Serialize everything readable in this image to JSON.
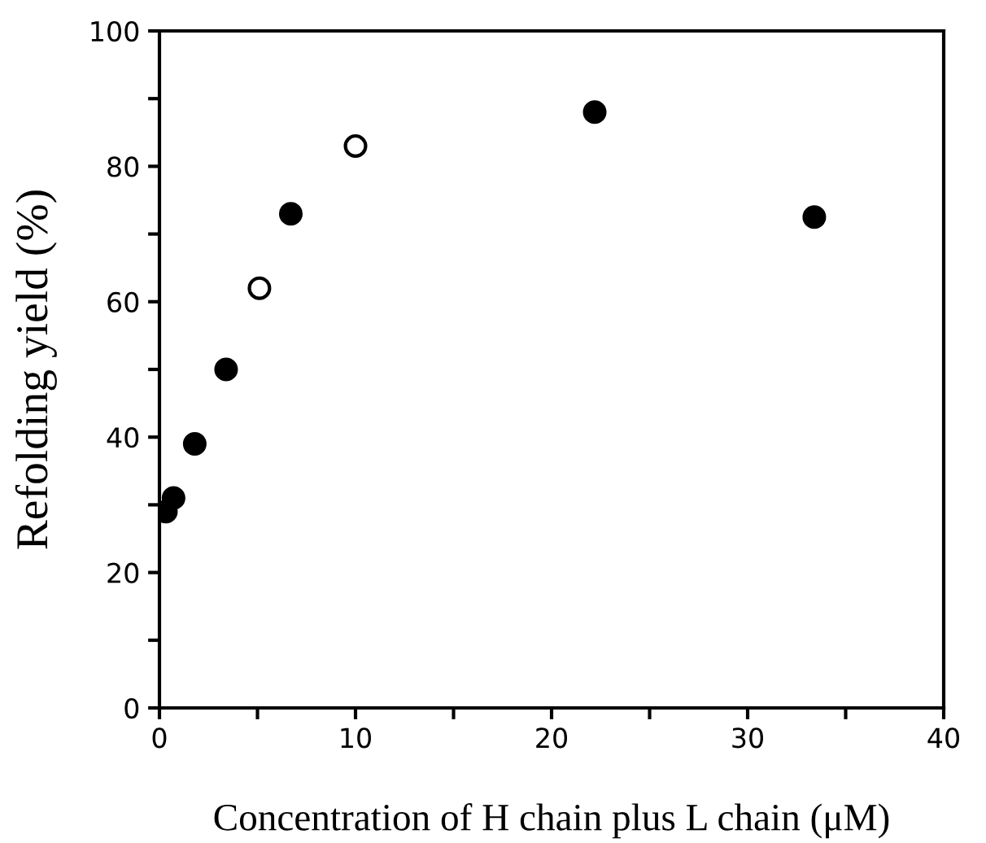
{
  "chart_data": {
    "type": "scatter",
    "xlabel": "Concentration of H chain plus L chain (μM)",
    "ylabel": "Refolding yield (%)",
    "xlim": [
      0,
      40
    ],
    "ylim": [
      0,
      100
    ],
    "xticks": [
      0,
      {
        "value": 5,
        "label": null
      },
      10,
      {
        "value": 15,
        "label": null
      },
      20,
      {
        "value": 25,
        "label": null
      },
      30,
      {
        "value": 35,
        "label": null
      },
      40
    ],
    "yticks": [
      0,
      {
        "value": 10,
        "label": null
      },
      20,
      {
        "value": 30,
        "label": null
      },
      40,
      {
        "value": 50,
        "label": null
      },
      60,
      {
        "value": 70,
        "label": null
      },
      80,
      {
        "value": 90,
        "label": null
      },
      100
    ],
    "grid": false,
    "marker": "circle",
    "series": [
      {
        "color": "#000000",
        "x": [
          0.33,
          0.72,
          1.8,
          3.4,
          6.7,
          22.2,
          33.4
        ],
        "values": [
          29,
          31,
          39,
          50,
          73,
          88,
          72.5
        ]
      },
      {
        "color": "#ffffff",
        "x": [
          5.1,
          10.0
        ],
        "values": [
          62,
          83
        ]
      }
    ]
  }
}
